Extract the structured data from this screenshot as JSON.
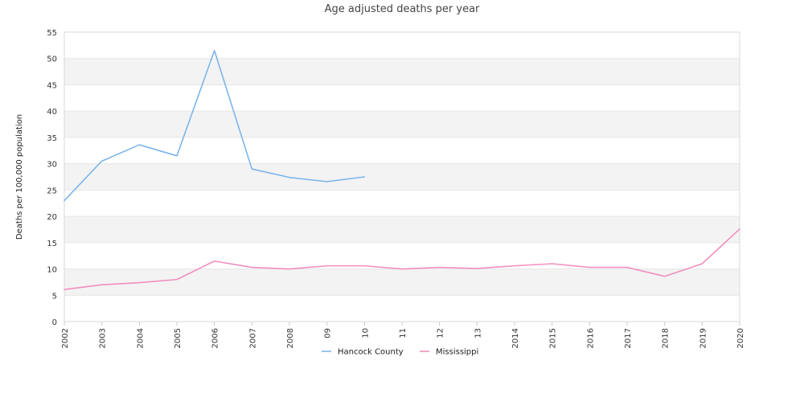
{
  "chart_data": {
    "type": "line",
    "title": "Age adjusted deaths per year",
    "xlabel": "",
    "ylabel": "Deaths per 100,000 population",
    "categories": [
      "2002",
      "2003",
      "2004",
      "2005",
      "2006",
      "2007",
      "2008",
      "09",
      "10",
      "11",
      "12",
      "13",
      "2014",
      "2015",
      "2016",
      "2017",
      "2018",
      "2019",
      "2020"
    ],
    "ylim": [
      0,
      55
    ],
    "yticks": [
      0,
      5,
      10,
      15,
      20,
      25,
      30,
      35,
      40,
      45,
      50,
      55
    ],
    "grid": "horizontal alternating bands",
    "legend_position": "bottom",
    "series": [
      {
        "name": "Hancock County",
        "color": "#7cb5ec",
        "values": [
          23.0,
          30.5,
          33.6,
          31.5,
          51.5,
          29.0,
          27.4,
          26.6,
          27.5,
          null,
          null,
          null,
          null,
          null,
          null,
          null,
          null,
          null,
          null
        ]
      },
      {
        "name": "Mississippi",
        "color": "#f28fbe",
        "values": [
          6.1,
          7.0,
          7.4,
          8.0,
          11.5,
          10.3,
          10.0,
          10.6,
          10.6,
          10.0,
          10.3,
          10.1,
          10.6,
          11.0,
          10.3,
          10.3,
          8.6,
          11.0,
          17.6
        ]
      }
    ]
  }
}
